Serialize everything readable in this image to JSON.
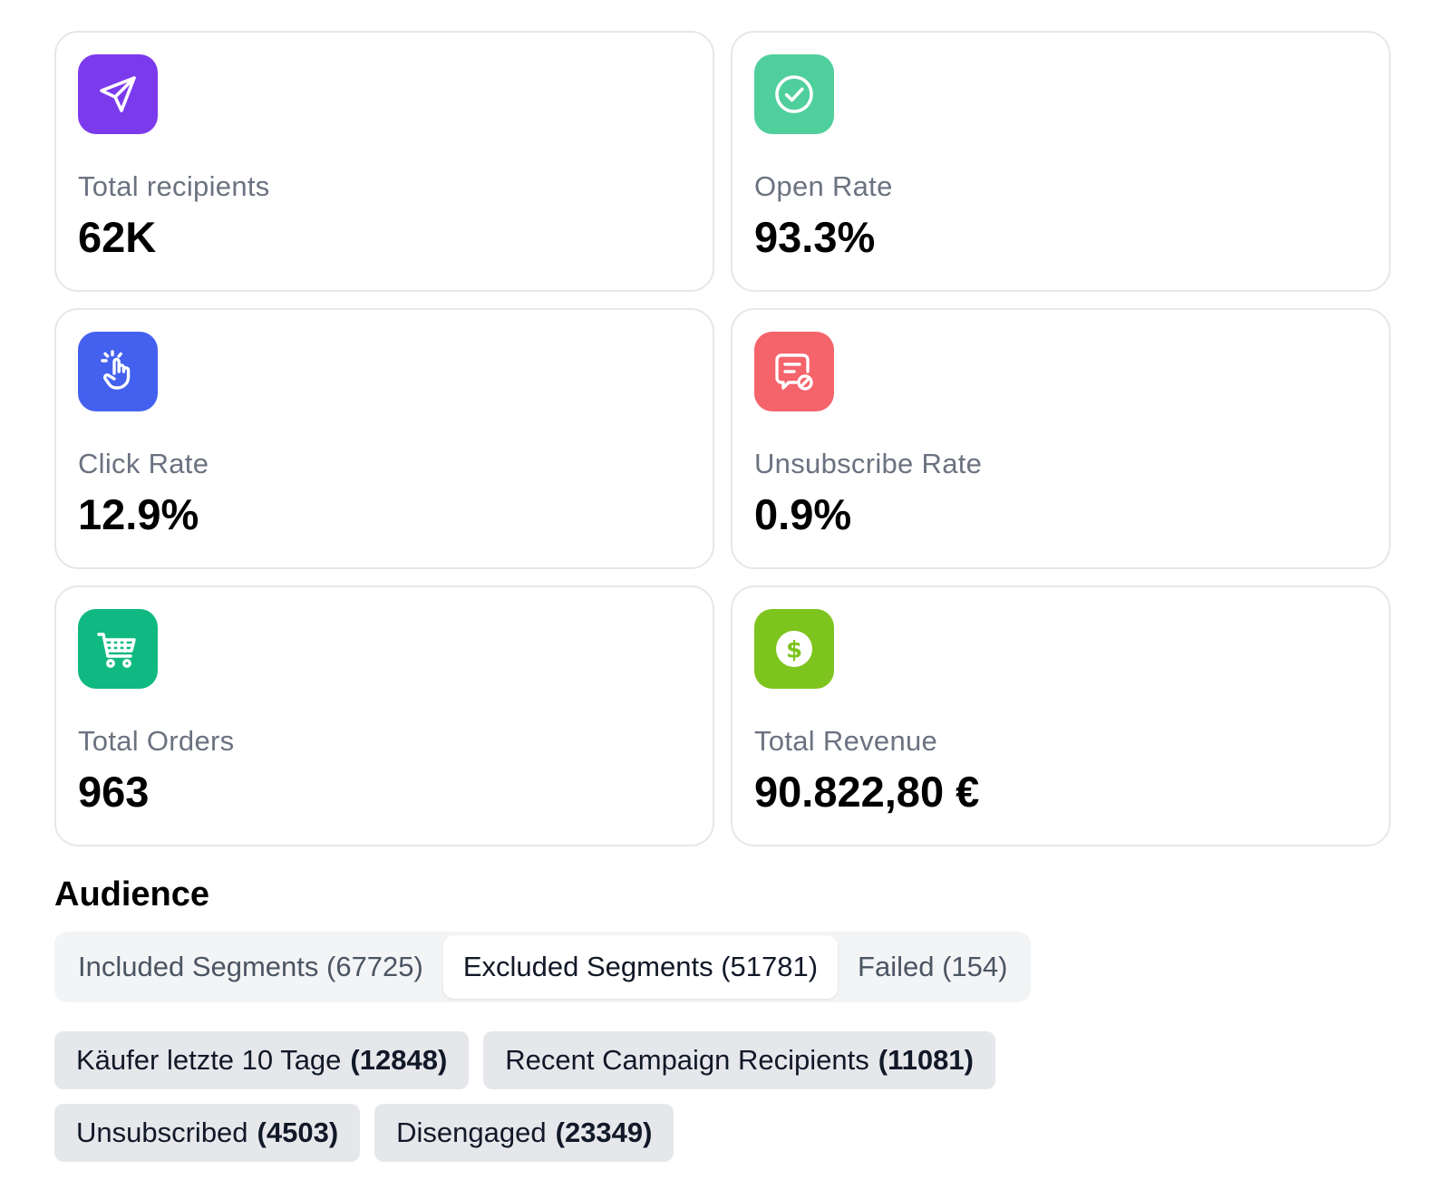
{
  "stats": [
    {
      "label": "Total recipients",
      "value": "62K",
      "icon": "send-icon",
      "color": "#7c3aed"
    },
    {
      "label": "Open Rate",
      "value": "93.3%",
      "icon": "check-circle-icon",
      "color": "#4fcf9b"
    },
    {
      "label": "Click Rate",
      "value": "12.9%",
      "icon": "click-hand-icon",
      "color": "#4361ee"
    },
    {
      "label": "Unsubscribe Rate",
      "value": "0.9%",
      "icon": "message-blocked-icon",
      "color": "#f5636b"
    },
    {
      "label": "Total Orders",
      "value": "963",
      "icon": "shopping-cart-icon",
      "color": "#10b981"
    },
    {
      "label": "Total Revenue",
      "value": "90.822,80 €",
      "icon": "dollar-coin-icon",
      "color": "#7ec41e"
    }
  ],
  "audience": {
    "title": "Audience",
    "tabs": [
      {
        "label": "Included Segments (67725)"
      },
      {
        "label": "Excluded Segments (51781)"
      },
      {
        "label": "Failed (154)"
      }
    ],
    "active_tab": "Excluded Segments (51781)",
    "segments": [
      {
        "name": "Käufer letzte 10 Tage",
        "count": "(12848)"
      },
      {
        "name": "Recent Campaign Recipients",
        "count": "(11081)"
      },
      {
        "name": "Unsubscribed",
        "count": "(4503)"
      },
      {
        "name": "Disengaged",
        "count": "(23349)"
      }
    ]
  }
}
